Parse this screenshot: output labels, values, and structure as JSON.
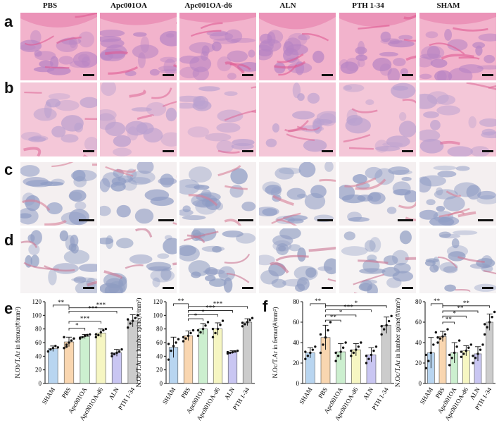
{
  "column_headers": [
    "PBS",
    "Apc001OA",
    "Apc001OA-d6",
    "ALN",
    "PTH 1-34",
    "SHAM"
  ],
  "row_letters": [
    "a",
    "b",
    "c",
    "d"
  ],
  "panel_styles": {
    "a": {
      "bg": "#f2b3cc",
      "tissue": "#b784c4",
      "accent": "#e05a92"
    },
    "b": {
      "bg": "#f4c7d8",
      "tissue": "#b9a0cf",
      "accent": "#dd6b99"
    },
    "c": {
      "bg": "#f4eff0",
      "tissue": "#8e9bc4",
      "accent": "#d77f98"
    },
    "d": {
      "bg": "#f6f3f4",
      "tissue": "#8f9cc2",
      "accent": "#cc7792"
    }
  },
  "chart_letters": {
    "e": "e",
    "f": "f"
  },
  "chart_data": [
    {
      "type": "bar",
      "panel": "e",
      "ylabel": "N.Ob/T.Ar in femur(#/mm²)",
      "categories": [
        "SHAM",
        "PBS",
        "Apc001OA",
        "Apc001OA-d6",
        "ALN",
        "PTH 1-34"
      ],
      "values": [
        51,
        61,
        69,
        74,
        45,
        92
      ],
      "errors": [
        4,
        7,
        3,
        6,
        5,
        9
      ],
      "points": [
        [
          47,
          50,
          52,
          55,
          53
        ],
        [
          52,
          57,
          60,
          63,
          66,
          68,
          54
        ],
        [
          66,
          68,
          70,
          71,
          72,
          67
        ],
        [
          68,
          71,
          75,
          78,
          80,
          72
        ],
        [
          40,
          43,
          45,
          47,
          50,
          44
        ],
        [
          82,
          88,
          92,
          96,
          100,
          94
        ]
      ],
      "colors": [
        "#b8d5f0",
        "#f9d6b0",
        "#ccefcf",
        "#f6f6c2",
        "#c9c6f2",
        "#cccccc"
      ],
      "yticks": [
        0,
        20,
        40,
        60,
        80,
        100,
        120
      ],
      "ylim": [
        0,
        120
      ],
      "significance": [
        {
          "from": 0,
          "to": 1,
          "label": "**",
          "level": 115
        },
        {
          "from": 1,
          "to": 5,
          "label": "***",
          "level": 111
        },
        {
          "from": 1,
          "to": 4,
          "label": "***",
          "level": 106
        },
        {
          "from": 1,
          "to": 3,
          "label": "***",
          "level": 91
        },
        {
          "from": 1,
          "to": 2,
          "label": "*",
          "level": 81
        }
      ]
    },
    {
      "type": "bar",
      "panel": "e",
      "ylabel": "N.Ob/T.Ar in lumber spine(#/mm²)",
      "categories": [
        "SHAM",
        "PBS",
        "Apc001OA",
        "Apc001OA-d6",
        "ALN",
        "PTH 1-34"
      ],
      "values": [
        53,
        70,
        80,
        80,
        46,
        90
      ],
      "errors": [
        15,
        7,
        8,
        9,
        2,
        5
      ],
      "points": [
        [
          35,
          48,
          55,
          60,
          65,
          58
        ],
        [
          62,
          66,
          70,
          74,
          78,
          68
        ],
        [
          70,
          75,
          80,
          85,
          90,
          78
        ],
        [
          68,
          74,
          80,
          86,
          92,
          80
        ],
        [
          44,
          45,
          46,
          47,
          48,
          46
        ],
        [
          84,
          87,
          90,
          93,
          96,
          89
        ]
      ],
      "colors": [
        "#b8d5f0",
        "#f9d6b0",
        "#ccefcf",
        "#f6f6c2",
        "#c9c6f2",
        "#cccccc"
      ],
      "yticks": [
        0,
        20,
        40,
        60,
        80,
        100,
        120
      ],
      "ylim": [
        0,
        120
      ],
      "significance": [
        {
          "from": 0,
          "to": 1,
          "label": "**",
          "level": 117
        },
        {
          "from": 1,
          "to": 5,
          "label": "***",
          "level": 113
        },
        {
          "from": 1,
          "to": 4,
          "label": "***",
          "level": 107
        },
        {
          "from": 1,
          "to": 3,
          "label": "*",
          "level": 101
        },
        {
          "from": 1,
          "to": 2,
          "label": "*",
          "level": 95
        }
      ]
    },
    {
      "type": "bar",
      "panel": "f",
      "ylabel": "N.Oc/T.Ar in femur(#/mm²)",
      "categories": [
        "SHAM",
        "PBS",
        "Apc001OA",
        "Apc001OA-d6",
        "ALN",
        "PTH 1-34"
      ],
      "values": [
        30,
        45,
        31,
        33,
        28,
        57
      ],
      "errors": [
        5,
        12,
        8,
        6,
        7,
        8
      ],
      "points": [
        [
          24,
          27,
          30,
          33,
          36,
          31
        ],
        [
          30,
          38,
          45,
          52,
          60,
          48
        ],
        [
          22,
          27,
          31,
          35,
          40,
          30
        ],
        [
          27,
          30,
          33,
          36,
          40,
          32
        ],
        [
          20,
          24,
          28,
          32,
          36,
          27
        ],
        [
          48,
          53,
          57,
          61,
          66,
          56
        ]
      ],
      "colors": [
        "#b8d5f0",
        "#f9d6b0",
        "#ccefcf",
        "#f6f6c2",
        "#c9c6f2",
        "#cccccc"
      ],
      "yticks": [
        0,
        20,
        40,
        60,
        80
      ],
      "ylim": [
        0,
        80
      ],
      "significance": [
        {
          "from": 0,
          "to": 1,
          "label": "**",
          "level": 78
        },
        {
          "from": 1,
          "to": 5,
          "label": "*",
          "level": 76
        },
        {
          "from": 1,
          "to": 4,
          "label": "***",
          "level": 72
        },
        {
          "from": 1,
          "to": 3,
          "label": "*",
          "level": 67
        },
        {
          "from": 1,
          "to": 2,
          "label": "**",
          "level": 62
        }
      ]
    },
    {
      "type": "bar",
      "panel": "f",
      "ylabel": "N.Oc/T.Ar in lumber spine(#/mm²)",
      "categories": [
        "SHAM",
        "PBS",
        "Apc001OA",
        "Apc001OA-d6",
        "ALN",
        "PTH 1-34"
      ],
      "values": [
        30,
        46,
        30,
        32,
        29,
        60
      ],
      "errors": [
        15,
        5,
        10,
        5,
        7,
        8
      ],
      "points": [
        [
          15,
          22,
          30,
          38,
          50,
          28
        ],
        [
          40,
          44,
          46,
          48,
          53,
          45
        ],
        [
          18,
          25,
          30,
          36,
          42,
          28
        ],
        [
          26,
          29,
          32,
          35,
          38,
          31
        ],
        [
          20,
          25,
          29,
          33,
          38,
          27
        ],
        [
          48,
          55,
          60,
          65,
          70,
          58
        ]
      ],
      "colors": [
        "#b8d5f0",
        "#f9d6b0",
        "#ccefcf",
        "#f6f6c2",
        "#c9c6f2",
        "#cccccc"
      ],
      "yticks": [
        0,
        20,
        40,
        60,
        80
      ],
      "ylim": [
        0,
        80
      ],
      "significance": [
        {
          "from": 0,
          "to": 1,
          "label": "**",
          "level": 78
        },
        {
          "from": 1,
          "to": 5,
          "label": "**",
          "level": 76
        },
        {
          "from": 1,
          "to": 4,
          "label": "**",
          "level": 71
        },
        {
          "from": 1,
          "to": 3,
          "label": "*",
          "level": 66
        },
        {
          "from": 1,
          "to": 2,
          "label": "**",
          "level": 60
        }
      ]
    }
  ]
}
